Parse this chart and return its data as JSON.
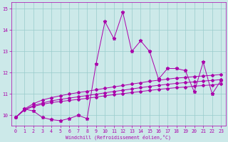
{
  "xlabel": "Windchill (Refroidissement éolien,°C)",
  "xlim": [
    -0.5,
    23.5
  ],
  "ylim": [
    9.5,
    15.3
  ],
  "yticks": [
    10,
    11,
    12,
    13,
    14,
    15
  ],
  "xticks": [
    0,
    1,
    2,
    3,
    4,
    5,
    6,
    7,
    8,
    9,
    10,
    11,
    12,
    13,
    14,
    15,
    16,
    17,
    18,
    19,
    20,
    21,
    22,
    23
  ],
  "bg_color": "#cce9e9",
  "line_color": "#aa00aa",
  "grid_color": "#99cccc",
  "spiky": [
    9.9,
    10.3,
    10.2,
    9.9,
    9.8,
    9.75,
    9.85,
    10.0,
    9.85,
    12.4,
    14.4,
    13.6,
    14.85,
    13.0,
    13.5,
    13.0,
    11.7,
    12.2,
    12.2,
    12.1,
    11.1,
    12.5,
    11.0,
    11.65
  ],
  "smooth_upper": [
    9.9,
    10.3,
    10.55,
    10.72,
    10.83,
    10.92,
    11.0,
    11.07,
    11.13,
    11.2,
    11.27,
    11.34,
    11.4,
    11.47,
    11.53,
    11.6,
    11.65,
    11.7,
    11.75,
    11.78,
    11.82,
    11.85,
    11.88,
    11.92
  ],
  "smooth_lower": [
    9.9,
    10.25,
    10.42,
    10.52,
    10.6,
    10.65,
    10.7,
    10.75,
    10.8,
    10.86,
    10.92,
    10.97,
    11.02,
    11.07,
    11.12,
    11.17,
    11.22,
    11.26,
    11.3,
    11.33,
    11.37,
    11.4,
    11.43,
    11.47
  ],
  "smooth_mid": [
    9.9,
    10.27,
    10.46,
    10.58,
    10.68,
    10.75,
    10.81,
    10.87,
    10.93,
    10.99,
    11.06,
    11.12,
    11.18,
    11.24,
    11.3,
    11.36,
    11.41,
    11.46,
    11.5,
    11.54,
    11.57,
    11.61,
    11.64,
    11.68
  ]
}
